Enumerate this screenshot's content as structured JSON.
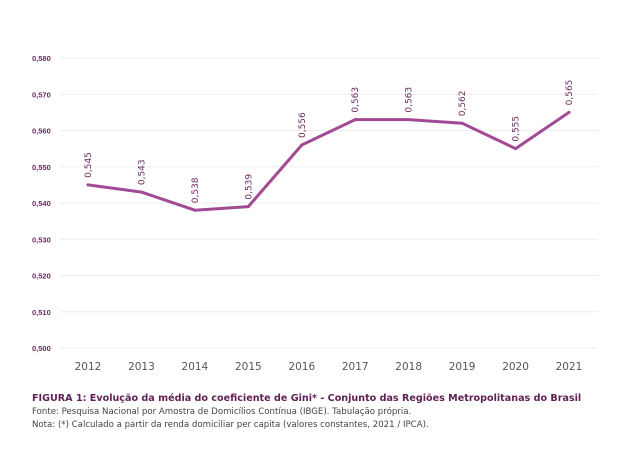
{
  "colors": {
    "line": "#a34a95",
    "text": "#6b2a5e",
    "caption_title": "#5e1f54"
  },
  "chart_data": {
    "type": "line",
    "x": [
      "2012",
      "2013",
      "2014",
      "2015",
      "2016",
      "2017",
      "2018",
      "2019",
      "2020",
      "2021"
    ],
    "series": [
      {
        "name": "Coeficiente de Gini",
        "values": [
          0.545,
          0.543,
          0.538,
          0.539,
          0.556,
          0.563,
          0.563,
          0.562,
          0.555,
          0.565
        ]
      }
    ],
    "data_labels": [
      "0,545",
      "0,543",
      "0,538",
      "0,539",
      "0,556",
      "0,563",
      "0,563",
      "0,562",
      "0,555",
      "0,565"
    ],
    "yticks": [
      0.5,
      0.51,
      0.52,
      0.53,
      0.54,
      0.55,
      0.56,
      0.57,
      0.58
    ],
    "ytick_labels": [
      "0,500",
      "0,510",
      "0,520",
      "0,530",
      "0,540",
      "0,550",
      "0,560",
      "0,570",
      "0,580"
    ],
    "ylim": [
      0.5,
      0.58
    ],
    "grid": true,
    "legend": "none"
  },
  "caption": {
    "title": "FIGURA 1: Evolução da média do coeficiente de Gini* - Conjunto das Regiões Metropolitanas do Brasil",
    "source": "Fonte: Pesquisa Nacional por Amostra de Domicílios Contínua (IBGE). Tabulação própria.",
    "note": "Nota: (*) Calculado a partir da renda domiciliar per capita (valores constantes, 2021 / IPCA)."
  }
}
